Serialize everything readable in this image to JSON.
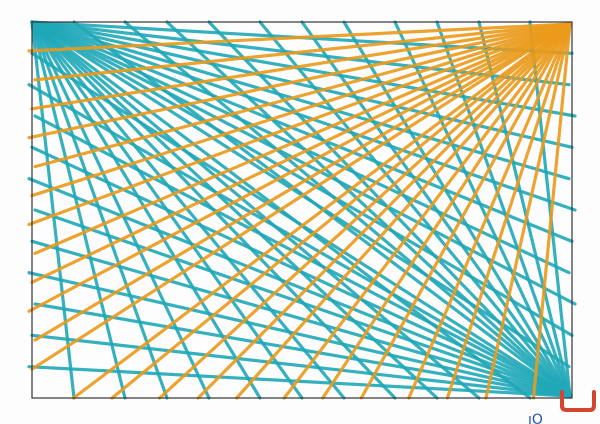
{
  "drawing": {
    "paper_color": "#fdfdfd",
    "frame_color": "#333333",
    "colors": {
      "teal": "#1fa8b8",
      "orange": "#eb9a1a",
      "red_mark": "#d2452f",
      "blue_mark": "#2255aa"
    },
    "fans": [
      {
        "name": "teal-top-left-fan",
        "color": "teal",
        "corner": "top-left",
        "count": 22
      },
      {
        "name": "teal-bottom-right-fan",
        "color": "teal",
        "corner": "bottom-right",
        "count": 22
      },
      {
        "name": "orange-top-right-fan",
        "color": "orange",
        "corner": "top-right",
        "count": 24
      }
    ]
  }
}
